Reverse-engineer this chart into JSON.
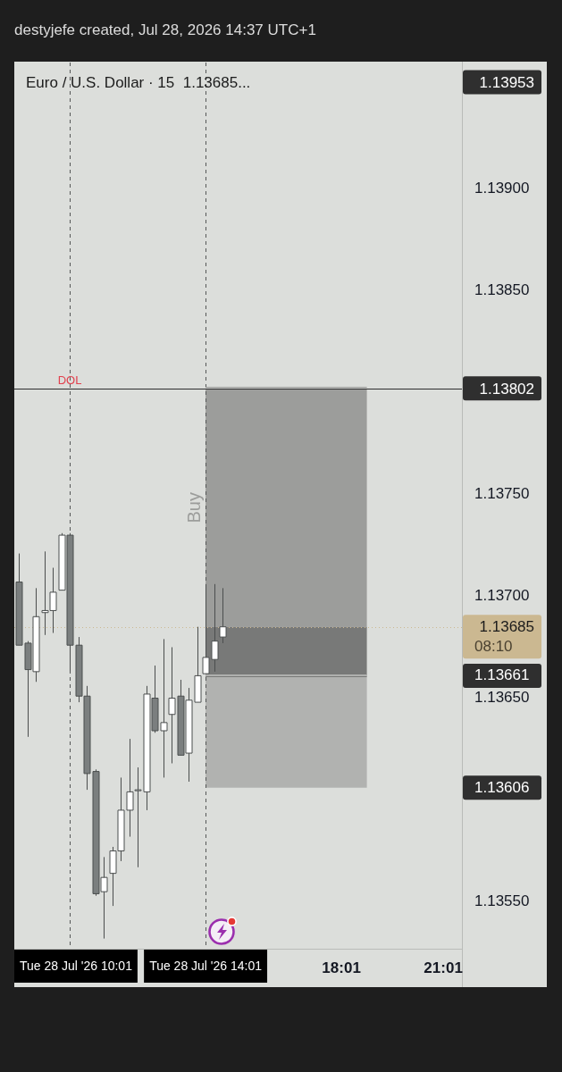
{
  "chart_data": {
    "type": "candlestick",
    "title": "Euro / U.S. Dollar · 15  1.13685...",
    "subtitle": "destyjefe created, Jul 28, 2026 14:37 UTC+1",
    "x": [
      "2026-07-28T08:31",
      "2026-07-28T08:46",
      "2026-07-28T09:01",
      "2026-07-28T09:16",
      "2026-07-28T09:31",
      "2026-07-28T09:46",
      "2026-07-28T10:01",
      "2026-07-28T10:16",
      "2026-07-28T10:31",
      "2026-07-28T10:46",
      "2026-07-28T11:01",
      "2026-07-28T11:16",
      "2026-07-28T11:31",
      "2026-07-28T11:46",
      "2026-07-28T12:01",
      "2026-07-28T12:16",
      "2026-07-28T12:31",
      "2026-07-28T12:46",
      "2026-07-28T13:01",
      "2026-07-28T13:16",
      "2026-07-28T13:31",
      "2026-07-28T13:46",
      "2026-07-28T14:01",
      "2026-07-28T14:16",
      "2026-07-28T14:31"
    ],
    "ohlc": [
      [
        1.13707,
        1.13721,
        1.13676,
        1.13676
      ],
      [
        1.13677,
        1.13678,
        1.13631,
        1.13664
      ],
      [
        1.13663,
        1.13704,
        1.13658,
        1.1369
      ],
      [
        1.13692,
        1.13722,
        1.13681,
        1.13693
      ],
      [
        1.13693,
        1.13714,
        1.13682,
        1.13702
      ],
      [
        1.13703,
        1.13731,
        1.13703,
        1.1373
      ],
      [
        1.1373,
        1.13731,
        1.13663,
        1.13676
      ],
      [
        1.13676,
        1.1368,
        1.13648,
        1.13651
      ],
      [
        1.13651,
        1.13656,
        1.13605,
        1.13613
      ],
      [
        1.13614,
        1.13615,
        1.13553,
        1.13554
      ],
      [
        1.13555,
        1.13572,
        1.13532,
        1.13562
      ],
      [
        1.13564,
        1.13577,
        1.13548,
        1.13575
      ],
      [
        1.13575,
        1.13611,
        1.1357,
        1.13595
      ],
      [
        1.13595,
        1.1363,
        1.13582,
        1.13604
      ],
      [
        1.13605,
        1.13616,
        1.13567,
        1.13605
      ],
      [
        1.13604,
        1.13656,
        1.13595,
        1.13652
      ],
      [
        1.1365,
        1.13666,
        1.13633,
        1.13634
      ],
      [
        1.13634,
        1.13679,
        1.13611,
        1.13638
      ],
      [
        1.13642,
        1.13675,
        1.13618,
        1.1365
      ],
      [
        1.13651,
        1.13659,
        1.13622,
        1.13622
      ],
      [
        1.13623,
        1.13655,
        1.13609,
        1.13649
      ],
      [
        1.13648,
        1.13685,
        1.13648,
        1.13661
      ],
      [
        1.13662,
        1.13706,
        1.13662,
        1.1367
      ],
      [
        1.13669,
        1.13706,
        1.13663,
        1.13678
      ],
      [
        1.1368,
        1.13704,
        1.13677,
        1.13685
      ]
    ],
    "colors": [
      "#7b7f7f",
      "#7b7f7f",
      "#ffffff",
      "#ffffff",
      "#ffffff",
      "#ffffff",
      "#7b7f7f",
      "#7b7f7f",
      "#7b7f7f",
      "#7b7f7f",
      "#ffffff",
      "#ffffff",
      "#ffffff",
      "#ffffff",
      "#ffffff",
      "#ffffff",
      "#7b7f7f",
      "#ffffff",
      "#ffffff",
      "#7b7f7f",
      "#ffffff",
      "#ffffff",
      "#ffffff",
      "#ffffff",
      "#ffffff"
    ],
    "series": [
      {
        "type": "line",
        "name": "Buy",
        "x": [
          "2026-07-28T14:01",
          "2026-07-28T18:46"
        ],
        "values": [
          1.13802,
          1.13802
        ],
        "upper": [
          1.13802,
          1.13802
        ],
        "lower": [
          1.13685,
          1.13685
        ],
        "color": "#9c9d9b"
      },
      {
        "type": "line",
        "x": [
          "2026-07-28T14:01",
          "2026-07-28T18:46"
        ],
        "values": [
          1.13661,
          1.13661
        ],
        "upper": [
          1.13685,
          1.13685
        ],
        "lower": [
          1.13661,
          1.13661
        ],
        "color": "#787978"
      },
      {
        "type": "line",
        "x": [
          "2026-07-28T14:01",
          "2026-07-28T18:46"
        ],
        "values": [
          1.13661,
          1.13661
        ],
        "upper": [
          1.13661,
          1.13661
        ],
        "lower": [
          1.13606,
          1.13606
        ],
        "color": "#b1b2b0"
      }
    ],
    "xlim": [
      "2026-07-28T08:23",
      "2026-07-28T21:34"
    ],
    "xticks": [
      {
        "value": "2026-07-28T18:01",
        "label": "18:01"
      },
      {
        "value": "2026-07-28T21:01",
        "label": "21:01"
      }
    ],
    "ylim": [
      1.13527,
      1.13962
    ],
    "yticks": [
      {
        "value": 1.1355,
        "label": "1.13550"
      },
      {
        "value": 1.13606,
        "label": "1.13606"
      },
      {
        "value": 1.1365,
        "label": "1.13650"
      },
      {
        "value": 1.13661,
        "label": "1.13661"
      },
      {
        "value": 1.137,
        "label": "1.13700"
      },
      {
        "value": 1.1375,
        "label": "1.13750"
      },
      {
        "value": 1.1385,
        "label": "1.13850"
      },
      {
        "value": 1.139,
        "label": "1.13900"
      }
    ],
    "ref_lines": [
      {
        "axis": "x",
        "value": "2026-07-28T10:01",
        "label": "Tue 28 Jul '26 10:01",
        "line_style": "dashed"
      },
      {
        "axis": "x",
        "value": "2026-07-28T14:01",
        "label": "Tue 28 Jul '26 14:01",
        "line_style": "dashed"
      },
      {
        "axis": "y",
        "value": 1.13802,
        "label": "1.13802",
        "color": "#2f2f2f"
      },
      {
        "axis": "y",
        "value": 1.13685,
        "label": "1.13685\n08:10",
        "color": "#cbb891",
        "line_style": "dotted"
      }
    ],
    "annotations": [
      {
        "text": "DOL",
        "x": "2026-07-28T10:01",
        "y": 1.13802
      },
      "1.13953"
    ]
  }
}
